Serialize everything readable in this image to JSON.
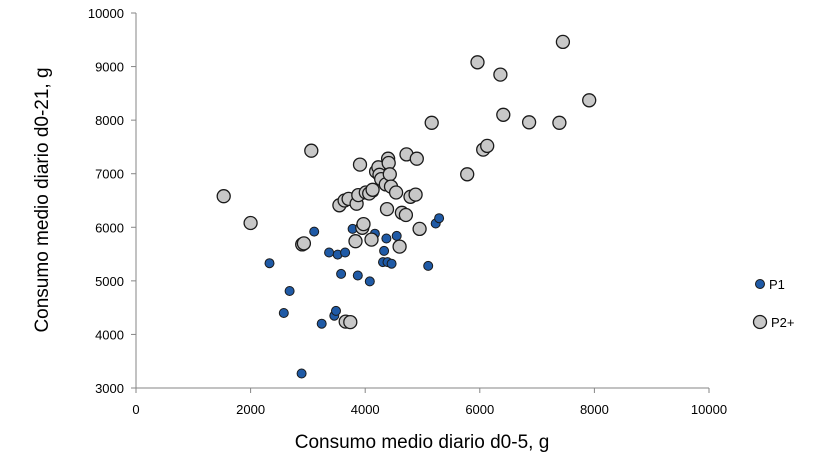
{
  "chart_data": {
    "type": "scatter",
    "title": "",
    "xlabel": "Consumo medio diario d0-5, g",
    "ylabel": "Consumo medio diario d0-21, g",
    "xlim": [
      0,
      10000
    ],
    "ylim": [
      3000,
      10000
    ],
    "x_ticks": [
      0,
      2000,
      4000,
      6000,
      8000,
      10000
    ],
    "y_ticks": [
      3000,
      4000,
      5000,
      6000,
      7000,
      8000,
      9000,
      10000
    ],
    "grid": false,
    "legend_position": "right",
    "series": [
      {
        "name": "P1",
        "color": "#1f5aa6",
        "marker": "small-circle",
        "points": [
          [
            2330,
            5330
          ],
          [
            2580,
            4400
          ],
          [
            2680,
            4810
          ],
          [
            2890,
            3270
          ],
          [
            3110,
            5920
          ],
          [
            3240,
            4200
          ],
          [
            3370,
            5530
          ],
          [
            3460,
            4350
          ],
          [
            3490,
            4440
          ],
          [
            3520,
            5490
          ],
          [
            3580,
            5130
          ],
          [
            3650,
            5530
          ],
          [
            3780,
            5970
          ],
          [
            3870,
            5100
          ],
          [
            4080,
            4990
          ],
          [
            4150,
            6650
          ],
          [
            4170,
            5880
          ],
          [
            4310,
            5350
          ],
          [
            4330,
            5560
          ],
          [
            4370,
            5790
          ],
          [
            4390,
            5350
          ],
          [
            4460,
            5320
          ],
          [
            4550,
            5840
          ],
          [
            5100,
            5280
          ],
          [
            5230,
            6070
          ],
          [
            5290,
            6170
          ]
        ]
      },
      {
        "name": "P2+",
        "color": "#c8c8c8",
        "marker": "large-circle",
        "points": [
          [
            1530,
            6580
          ],
          [
            2000,
            6080
          ],
          [
            2900,
            5680
          ],
          [
            2930,
            5700
          ],
          [
            3060,
            7430
          ],
          [
            3550,
            6410
          ],
          [
            3640,
            6500
          ],
          [
            3660,
            4240
          ],
          [
            3740,
            4230
          ],
          [
            3710,
            6530
          ],
          [
            3850,
            6440
          ],
          [
            3830,
            5740
          ],
          [
            3910,
            7170
          ],
          [
            3880,
            6600
          ],
          [
            3950,
            5990
          ],
          [
            3970,
            6060
          ],
          [
            4010,
            6650
          ],
          [
            4070,
            6630
          ],
          [
            4110,
            5770
          ],
          [
            4130,
            6700
          ],
          [
            4190,
            7040
          ],
          [
            4230,
            7120
          ],
          [
            4250,
            6980
          ],
          [
            4280,
            6900
          ],
          [
            4360,
            6800
          ],
          [
            4380,
            6340
          ],
          [
            4400,
            7280
          ],
          [
            4410,
            7200
          ],
          [
            4430,
            6990
          ],
          [
            4450,
            6760
          ],
          [
            4540,
            6650
          ],
          [
            4600,
            5640
          ],
          [
            4640,
            6270
          ],
          [
            4710,
            6230
          ],
          [
            4720,
            7360
          ],
          [
            4790,
            6570
          ],
          [
            4880,
            6610
          ],
          [
            4900,
            7280
          ],
          [
            4950,
            5970
          ],
          [
            5160,
            7950
          ],
          [
            5780,
            6990
          ],
          [
            5960,
            9080
          ],
          [
            6060,
            7450
          ],
          [
            6130,
            7520
          ],
          [
            6360,
            8850
          ],
          [
            6410,
            8100
          ],
          [
            6860,
            7960
          ],
          [
            7390,
            7950
          ],
          [
            7450,
            9460
          ],
          [
            7910,
            8370
          ]
        ]
      }
    ]
  }
}
